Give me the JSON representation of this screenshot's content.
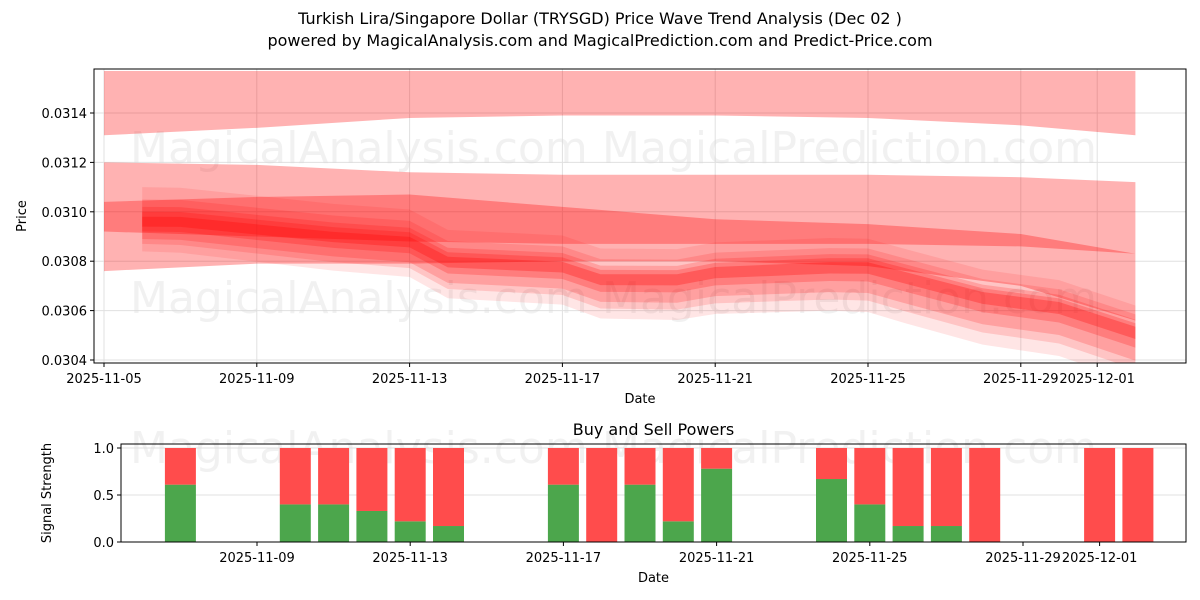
{
  "header": {
    "title": "Turkish Lira/Singapore Dollar (TRYSGD) Price Wave Trend Analysis (Dec 02 )",
    "subtitle": "powered by MagicalAnalysis.com and MagicalPrediction.com and Predict-Price.com"
  },
  "watermarks": {
    "left": "MagicalAnalysis.com",
    "right": "MagicalPrediction.com"
  },
  "colors": {
    "band": "#ff0000",
    "buy": "#4ca64c",
    "sell": "#ff4c4c",
    "grid": "#e0e0e0"
  },
  "chart_data": [
    {
      "type": "area",
      "title": "Turkish Lira/Singapore Dollar (TRYSGD) Price Wave Trend Analysis (Dec 02 )",
      "xlabel": "Date",
      "ylabel": "Price",
      "ylim": [
        0.03039,
        0.03157
      ],
      "grid": true,
      "x_ticks": [
        "2025-11-05",
        "2025-11-09",
        "2025-11-13",
        "2025-11-17",
        "2025-11-21",
        "2025-11-25",
        "2025-11-29",
        "2025-12-01"
      ],
      "y_ticks": [
        "0.0304",
        "0.0306",
        "0.0308",
        "0.0310",
        "0.0312",
        "0.0314"
      ],
      "series": [
        {
          "name": "upper-wave-band",
          "x": [
            "2025-11-05",
            "2025-11-09",
            "2025-11-13",
            "2025-11-17",
            "2025-11-21",
            "2025-11-25",
            "2025-11-29",
            "2025-12-02"
          ],
          "upper": [
            0.03157,
            0.03157,
            0.03157,
            0.03157,
            0.03157,
            0.03157,
            0.03157,
            0.03157
          ],
          "lower": [
            0.03131,
            0.03134,
            0.03138,
            0.03139,
            0.03139,
            0.03138,
            0.03135,
            0.03131
          ]
        },
        {
          "name": "wide-wave-band",
          "x": [
            "2025-11-05",
            "2025-11-09",
            "2025-11-13",
            "2025-11-17",
            "2025-11-21",
            "2025-11-25",
            "2025-11-29",
            "2025-12-02"
          ],
          "upper": [
            0.0312,
            0.03119,
            0.03116,
            0.03115,
            0.03115,
            0.03115,
            0.03114,
            0.03112
          ],
          "lower": [
            0.03076,
            0.03079,
            0.03079,
            0.0308,
            0.0308,
            0.03078,
            0.0307,
            0.03056
          ]
        },
        {
          "name": "mid-wave-band",
          "x": [
            "2025-11-05",
            "2025-11-09",
            "2025-11-13",
            "2025-11-17",
            "2025-11-21",
            "2025-11-25",
            "2025-11-29",
            "2025-12-02"
          ],
          "upper": [
            0.03104,
            0.03106,
            0.03107,
            0.03102,
            0.03097,
            0.03095,
            0.03091,
            0.03083
          ],
          "lower": [
            0.03092,
            0.0309,
            0.03088,
            0.03087,
            0.03087,
            0.03087,
            0.03086,
            0.03083
          ]
        },
        {
          "name": "price-wave-core",
          "x": [
            "2025-11-06",
            "2025-11-07",
            "2025-11-09",
            "2025-11-11",
            "2025-11-13",
            "2025-11-14",
            "2025-11-17",
            "2025-11-18",
            "2025-11-20",
            "2025-11-21",
            "2025-11-24",
            "2025-11-25",
            "2025-11-26",
            "2025-11-28",
            "2025-11-30",
            "2025-12-02"
          ],
          "values": [
            0.03096,
            0.03096,
            0.03093,
            0.0309,
            0.03088,
            0.0308,
            0.03078,
            0.03073,
            0.03073,
            0.03076,
            0.03078,
            0.03078,
            0.03074,
            0.03066,
            0.03062,
            0.03052
          ]
        }
      ]
    },
    {
      "type": "bar",
      "title": "Buy and Sell Powers",
      "xlabel": "Date",
      "ylabel": "Signal Strength",
      "ylim": [
        0,
        1.05
      ],
      "y_ticks": [
        "0.0",
        "0.5",
        "1.0"
      ],
      "x_ticks": [
        "2025-11-09",
        "2025-11-13",
        "2025-11-17",
        "2025-11-21",
        "2025-11-25",
        "2025-11-29",
        "2025-12-01"
      ],
      "categories": [
        "2025-11-07",
        "2025-11-10",
        "2025-11-11",
        "2025-11-12",
        "2025-11-13",
        "2025-11-14",
        "2025-11-17",
        "2025-11-18",
        "2025-11-19",
        "2025-11-20",
        "2025-11-21",
        "2025-11-24",
        "2025-11-25",
        "2025-11-26",
        "2025-11-27",
        "2025-11-28",
        "2025-12-01",
        "2025-12-02"
      ],
      "series": [
        {
          "name": "Buy",
          "values": [
            0.61,
            0.4,
            0.4,
            0.33,
            0.22,
            0.17,
            0.61,
            0.0,
            0.61,
            0.22,
            0.78,
            0.67,
            0.4,
            0.17,
            0.17,
            0.0,
            0.0,
            0.0
          ]
        },
        {
          "name": "Sell",
          "values": [
            0.39,
            0.6,
            0.6,
            0.67,
            0.78,
            0.83,
            0.39,
            1.0,
            0.39,
            0.78,
            0.22,
            0.33,
            0.6,
            0.83,
            0.83,
            1.0,
            1.0,
            1.0
          ]
        }
      ]
    }
  ]
}
